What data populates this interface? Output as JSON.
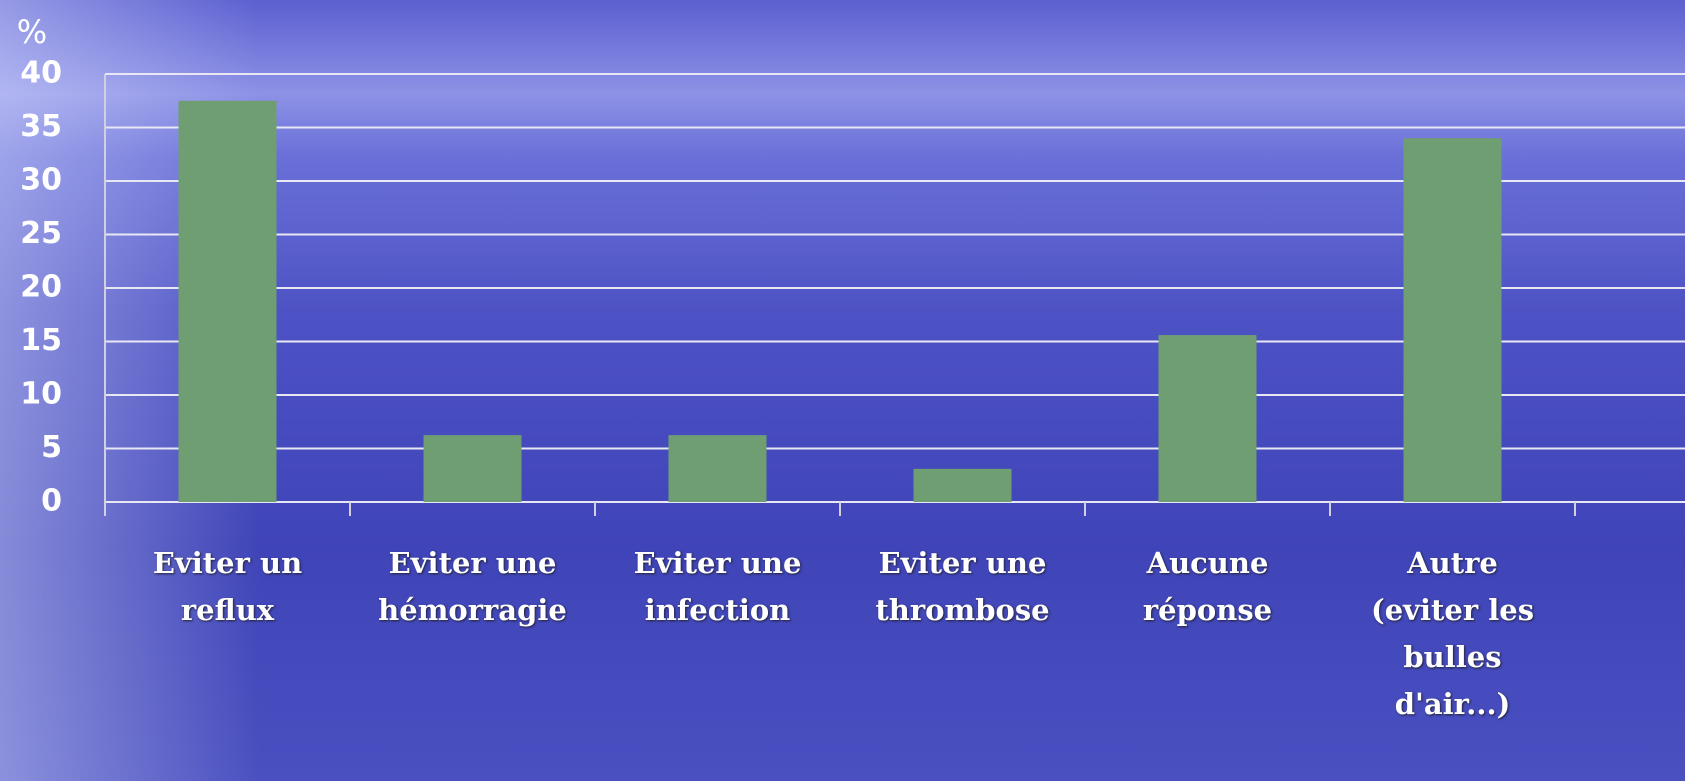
{
  "chart_data": {
    "type": "bar",
    "y_label": "%",
    "categories": [
      "Eviter un reflux",
      "Eviter une hémorragie",
      "Eviter une infection",
      "Eviter une thrombose",
      "Aucune réponse",
      "Autre (eviter les bulles d'air...)"
    ],
    "values": [
      37.5,
      6.25,
      6.25,
      3.1,
      15.6,
      34
    ],
    "color": "#6e9e72",
    "ylim": [
      0,
      40
    ],
    "yticks": [
      0,
      5,
      10,
      15,
      20,
      25,
      30,
      35,
      40
    ],
    "grid": true
  }
}
